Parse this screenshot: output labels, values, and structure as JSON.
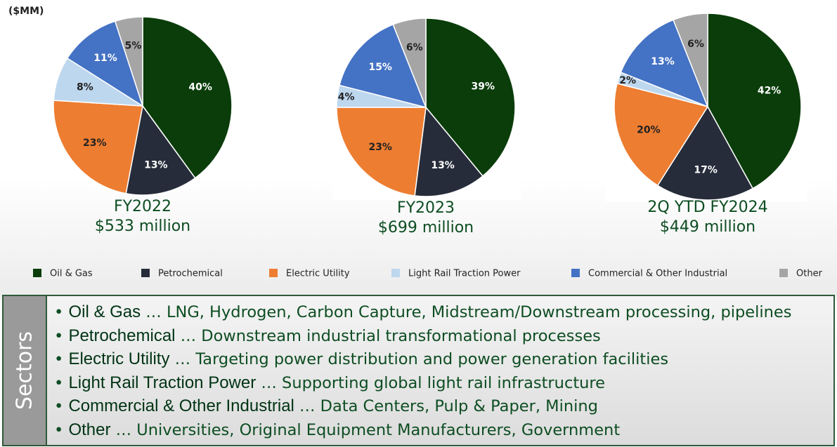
{
  "unit": "($MM)",
  "chart_data": [
    {
      "type": "pie",
      "title": "FY2022",
      "subtitle": "$533 million",
      "categories": [
        "Oil & Gas",
        "Petrochemical",
        "Electric Utility",
        "Light Rail Traction Power",
        "Commercial & Other Industrial",
        "Other"
      ],
      "values": [
        40,
        13,
        23,
        8,
        11,
        5
      ],
      "value_labels": [
        "40%",
        "13%",
        "23%",
        "8%",
        "11%",
        "5%"
      ],
      "colors": [
        "#0a3d0a",
        "#262c3a",
        "#ed7d31",
        "#bdd7ee",
        "#4472c4",
        "#a5a5a5"
      ]
    },
    {
      "type": "pie",
      "title": "FY2023",
      "subtitle": "$699 million",
      "categories": [
        "Oil & Gas",
        "Petrochemical",
        "Electric Utility",
        "Light Rail Traction Power",
        "Commercial & Other Industrial",
        "Other"
      ],
      "values": [
        39,
        13,
        23,
        4,
        15,
        6
      ],
      "value_labels": [
        "39%",
        "13%",
        "23%",
        "4%",
        "15%",
        "6%"
      ],
      "colors": [
        "#0a3d0a",
        "#262c3a",
        "#ed7d31",
        "#bdd7ee",
        "#4472c4",
        "#a5a5a5"
      ]
    },
    {
      "type": "pie",
      "title": "2Q YTD FY2024",
      "subtitle": "$449 million",
      "categories": [
        "Oil & Gas",
        "Petrochemical",
        "Electric Utility",
        "Light Rail Traction Power",
        "Commercial & Other Industrial",
        "Other"
      ],
      "values": [
        42,
        17,
        20,
        2,
        13,
        6
      ],
      "value_labels": [
        "42%",
        "17%",
        "20%",
        "2%",
        "13%",
        "6%"
      ],
      "colors": [
        "#0a3d0a",
        "#262c3a",
        "#ed7d31",
        "#bdd7ee",
        "#4472c4",
        "#a5a5a5"
      ]
    }
  ],
  "sectors": {
    "title": "Sectors",
    "items": [
      {
        "name": "Oil & Gas",
        "text": "… LNG, Hydrogen, Carbon Capture, Midstream/Downstream processing, pipelines"
      },
      {
        "name": "Petrochemical",
        "text": "… Downstream industrial transformational processes"
      },
      {
        "name": "Electric Utility",
        "text": "… Targeting power distribution and power generation facilities"
      },
      {
        "name": "Light Rail Traction Power",
        "text": "… Supporting global light rail infrastructure"
      },
      {
        "name": "Commercial & Other Industrial",
        "text": "… Data Centers, Pulp & Paper, Mining"
      },
      {
        "name": "Other",
        "text": "… Universities, Original Equipment Manufacturers, Government"
      }
    ]
  }
}
